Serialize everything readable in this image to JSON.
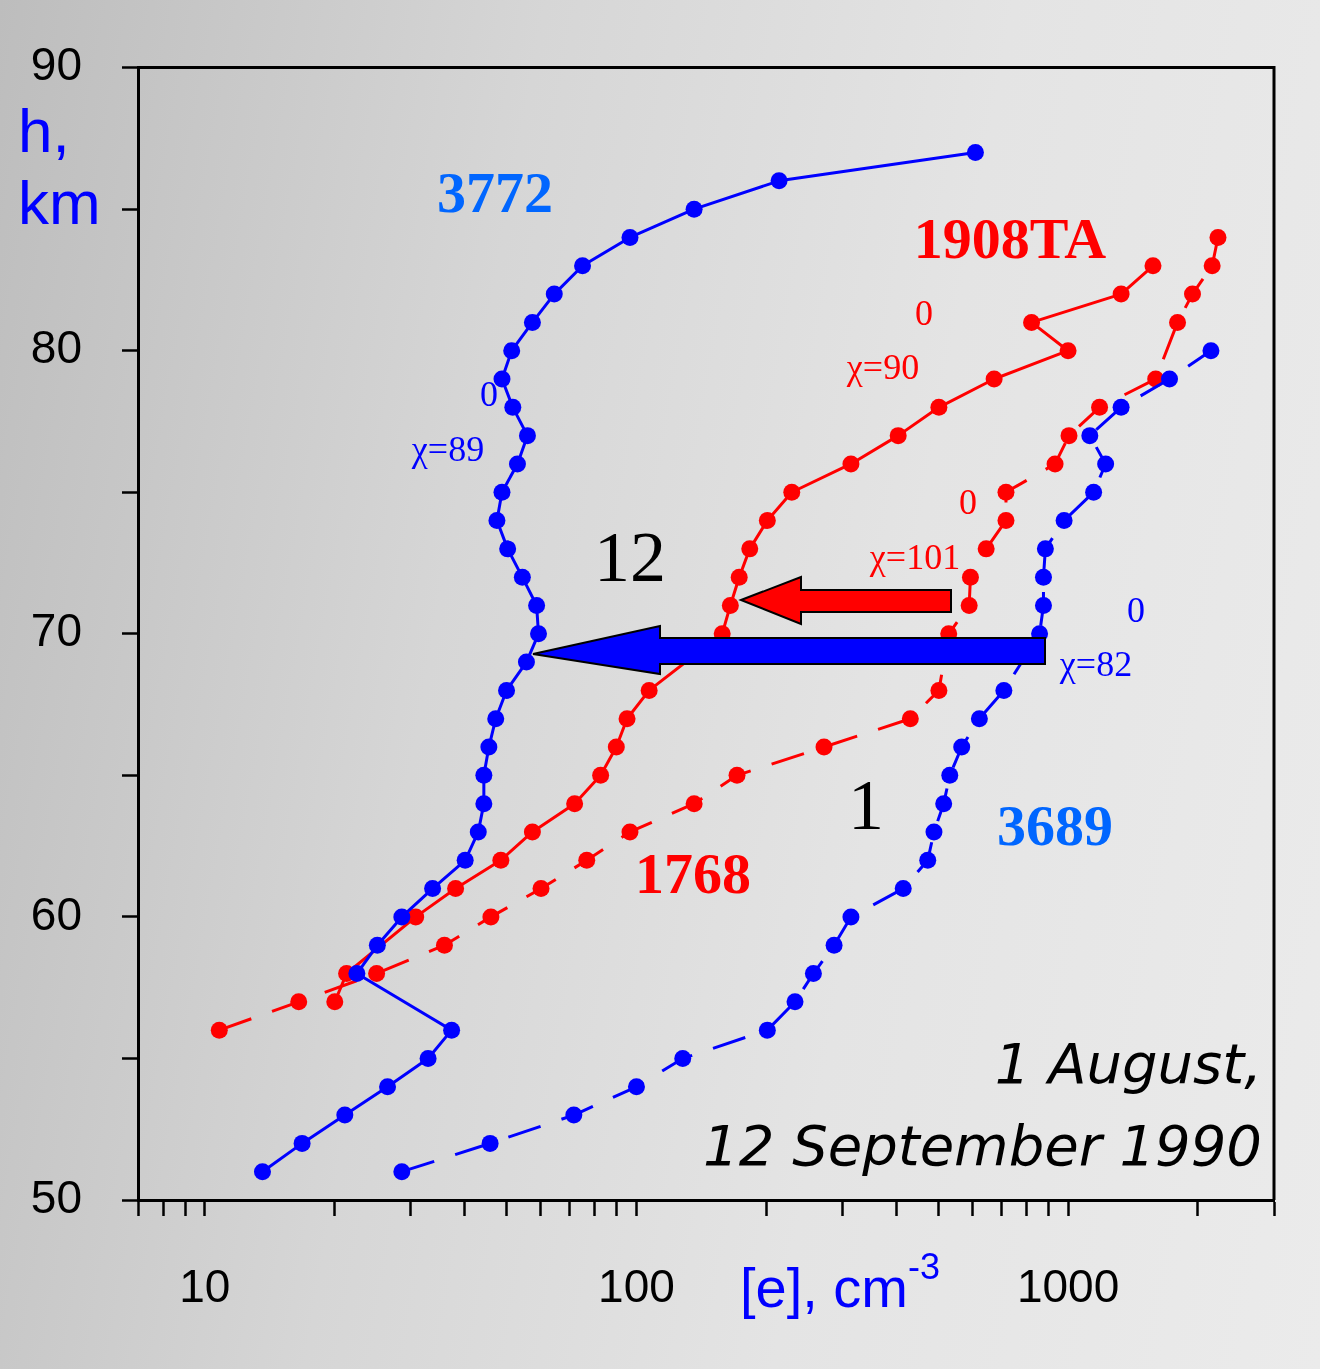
{
  "chart_data": {
    "type": "line",
    "xlabel": "[e], cm$^{-3}$",
    "ylabel": "h, km",
    "log": "x",
    "grid": false,
    "legend": false,
    "marker": "circle",
    "xlim": [
      7,
      3000
    ],
    "xticks": [
      {
        "value": 7,
        "label": null
      },
      {
        "value": 8,
        "label": null
      },
      {
        "value": 9,
        "label": null
      },
      10,
      {
        "value": 20,
        "label": null
      },
      {
        "value": 30,
        "label": null
      },
      {
        "value": 40,
        "label": null
      },
      {
        "value": 50,
        "label": null
      },
      {
        "value": 60,
        "label": null
      },
      {
        "value": 70,
        "label": null
      },
      {
        "value": 80,
        "label": null
      },
      {
        "value": 90,
        "label": null
      },
      100,
      {
        "value": 200,
        "label": null
      },
      {
        "value": 300,
        "label": null
      },
      {
        "value": 400,
        "label": null
      },
      {
        "value": 500,
        "label": null
      },
      {
        "value": 600,
        "label": null
      },
      {
        "value": 700,
        "label": null
      },
      {
        "value": 800,
        "label": null
      },
      {
        "value": 900,
        "label": null
      },
      1000,
      {
        "value": 2000,
        "label": null
      },
      {
        "value": 3000,
        "label": null
      }
    ],
    "ylim": [
      50,
      90
    ],
    "yticks": [
      50,
      {
        "value": 55,
        "label": null
      },
      60,
      {
        "value": 65,
        "label": null
      },
      70,
      {
        "value": 75,
        "label": null
      },
      80,
      {
        "value": 85,
        "label": null
      },
      90
    ],
    "series": [
      {
        "color": "#0000ff",
        "line_style": "solid",
        "x": [
          13.6,
          16.8,
          21.1,
          26.5,
          32.9,
          37.3,
          22.5,
          25.1,
          28.6,
          33.7,
          40.1,
          43,
          44.3,
          44.3,
          45.5,
          47.2,
          50,
          55.6,
          59.3,
          58.7,
          54.4,
          50.3,
          47.5,
          48.8,
          53,
          55.9,
          51.7,
          48.8,
          51.4,
          57.4,
          64.5,
          75,
          96.6,
          136,
          214,
          610
        ],
        "values": [
          51,
          52,
          53,
          54,
          55,
          56,
          58,
          59,
          60,
          61,
          62,
          63,
          64,
          65,
          66,
          67,
          68,
          69,
          70,
          71,
          72,
          73,
          74,
          75,
          76,
          77,
          78,
          79,
          80,
          81,
          82,
          83,
          84,
          85,
          86,
          87
        ]
      },
      {
        "color": "#0000ff",
        "line_style": "dashed",
        "x": [
          28.6,
          45.8,
          71.6,
          100,
          128,
          201,
          233,
          257,
          287,
          314,
          415,
          473,
          489,
          515,
          532,
          567,
          623,
          710,
          859,
          877,
          877,
          886,
          979,
          1146,
          1222,
          1123,
          1327,
          1718,
          2143
        ],
        "values": [
          51,
          52,
          53,
          54,
          55,
          56,
          57,
          58,
          59,
          60,
          61,
          62,
          63,
          64,
          65,
          66,
          67,
          68,
          70,
          71,
          72,
          73,
          74,
          75,
          76,
          77,
          78,
          79,
          80
        ]
      },
      {
        "color": "#ff0000",
        "line_style": "solid",
        "x": [
          20,
          21.3,
          30.8,
          38.1,
          48.5,
          57.4,
          71.9,
          82.6,
          89.8,
          95.1,
          107,
          158,
          165,
          173,
          183,
          201,
          229,
          314,
          404,
          502,
          674,
          1000,
          823,
          1327,
          1573
        ],
        "values": [
          57,
          58,
          60,
          61,
          62,
          63,
          64,
          65,
          66,
          67,
          68,
          70,
          71,
          72,
          73,
          74,
          75,
          76,
          77,
          78,
          79,
          80,
          81,
          82,
          83
        ]
      },
      {
        "color": "#ff0000",
        "line_style": "dashed",
        "x": [
          10.8,
          16.5,
          25,
          35.9,
          46,
          60.1,
          76.7,
          96.6,
          136,
          171,
          272,
          431,
          502,
          529,
          590,
          594,
          646,
          718,
          718,
          933,
          1005,
          1183,
          1596,
          1793,
          1942,
          2157,
          2225
        ],
        "values": [
          56,
          57,
          58,
          59,
          60,
          61,
          62,
          63,
          64,
          65,
          66,
          67,
          68,
          70,
          71,
          72,
          73,
          74,
          75,
          76,
          77,
          78,
          79,
          81,
          82,
          83,
          84
        ]
      }
    ],
    "annotations": [
      "3772",
      "1908TA",
      "1768",
      "3689",
      "12",
      "1",
      "0",
      "χ=89",
      "0",
      "χ=90",
      "0",
      "χ=101",
      "0",
      "χ=82",
      "1 August,\n12 September 1990"
    ]
  }
}
